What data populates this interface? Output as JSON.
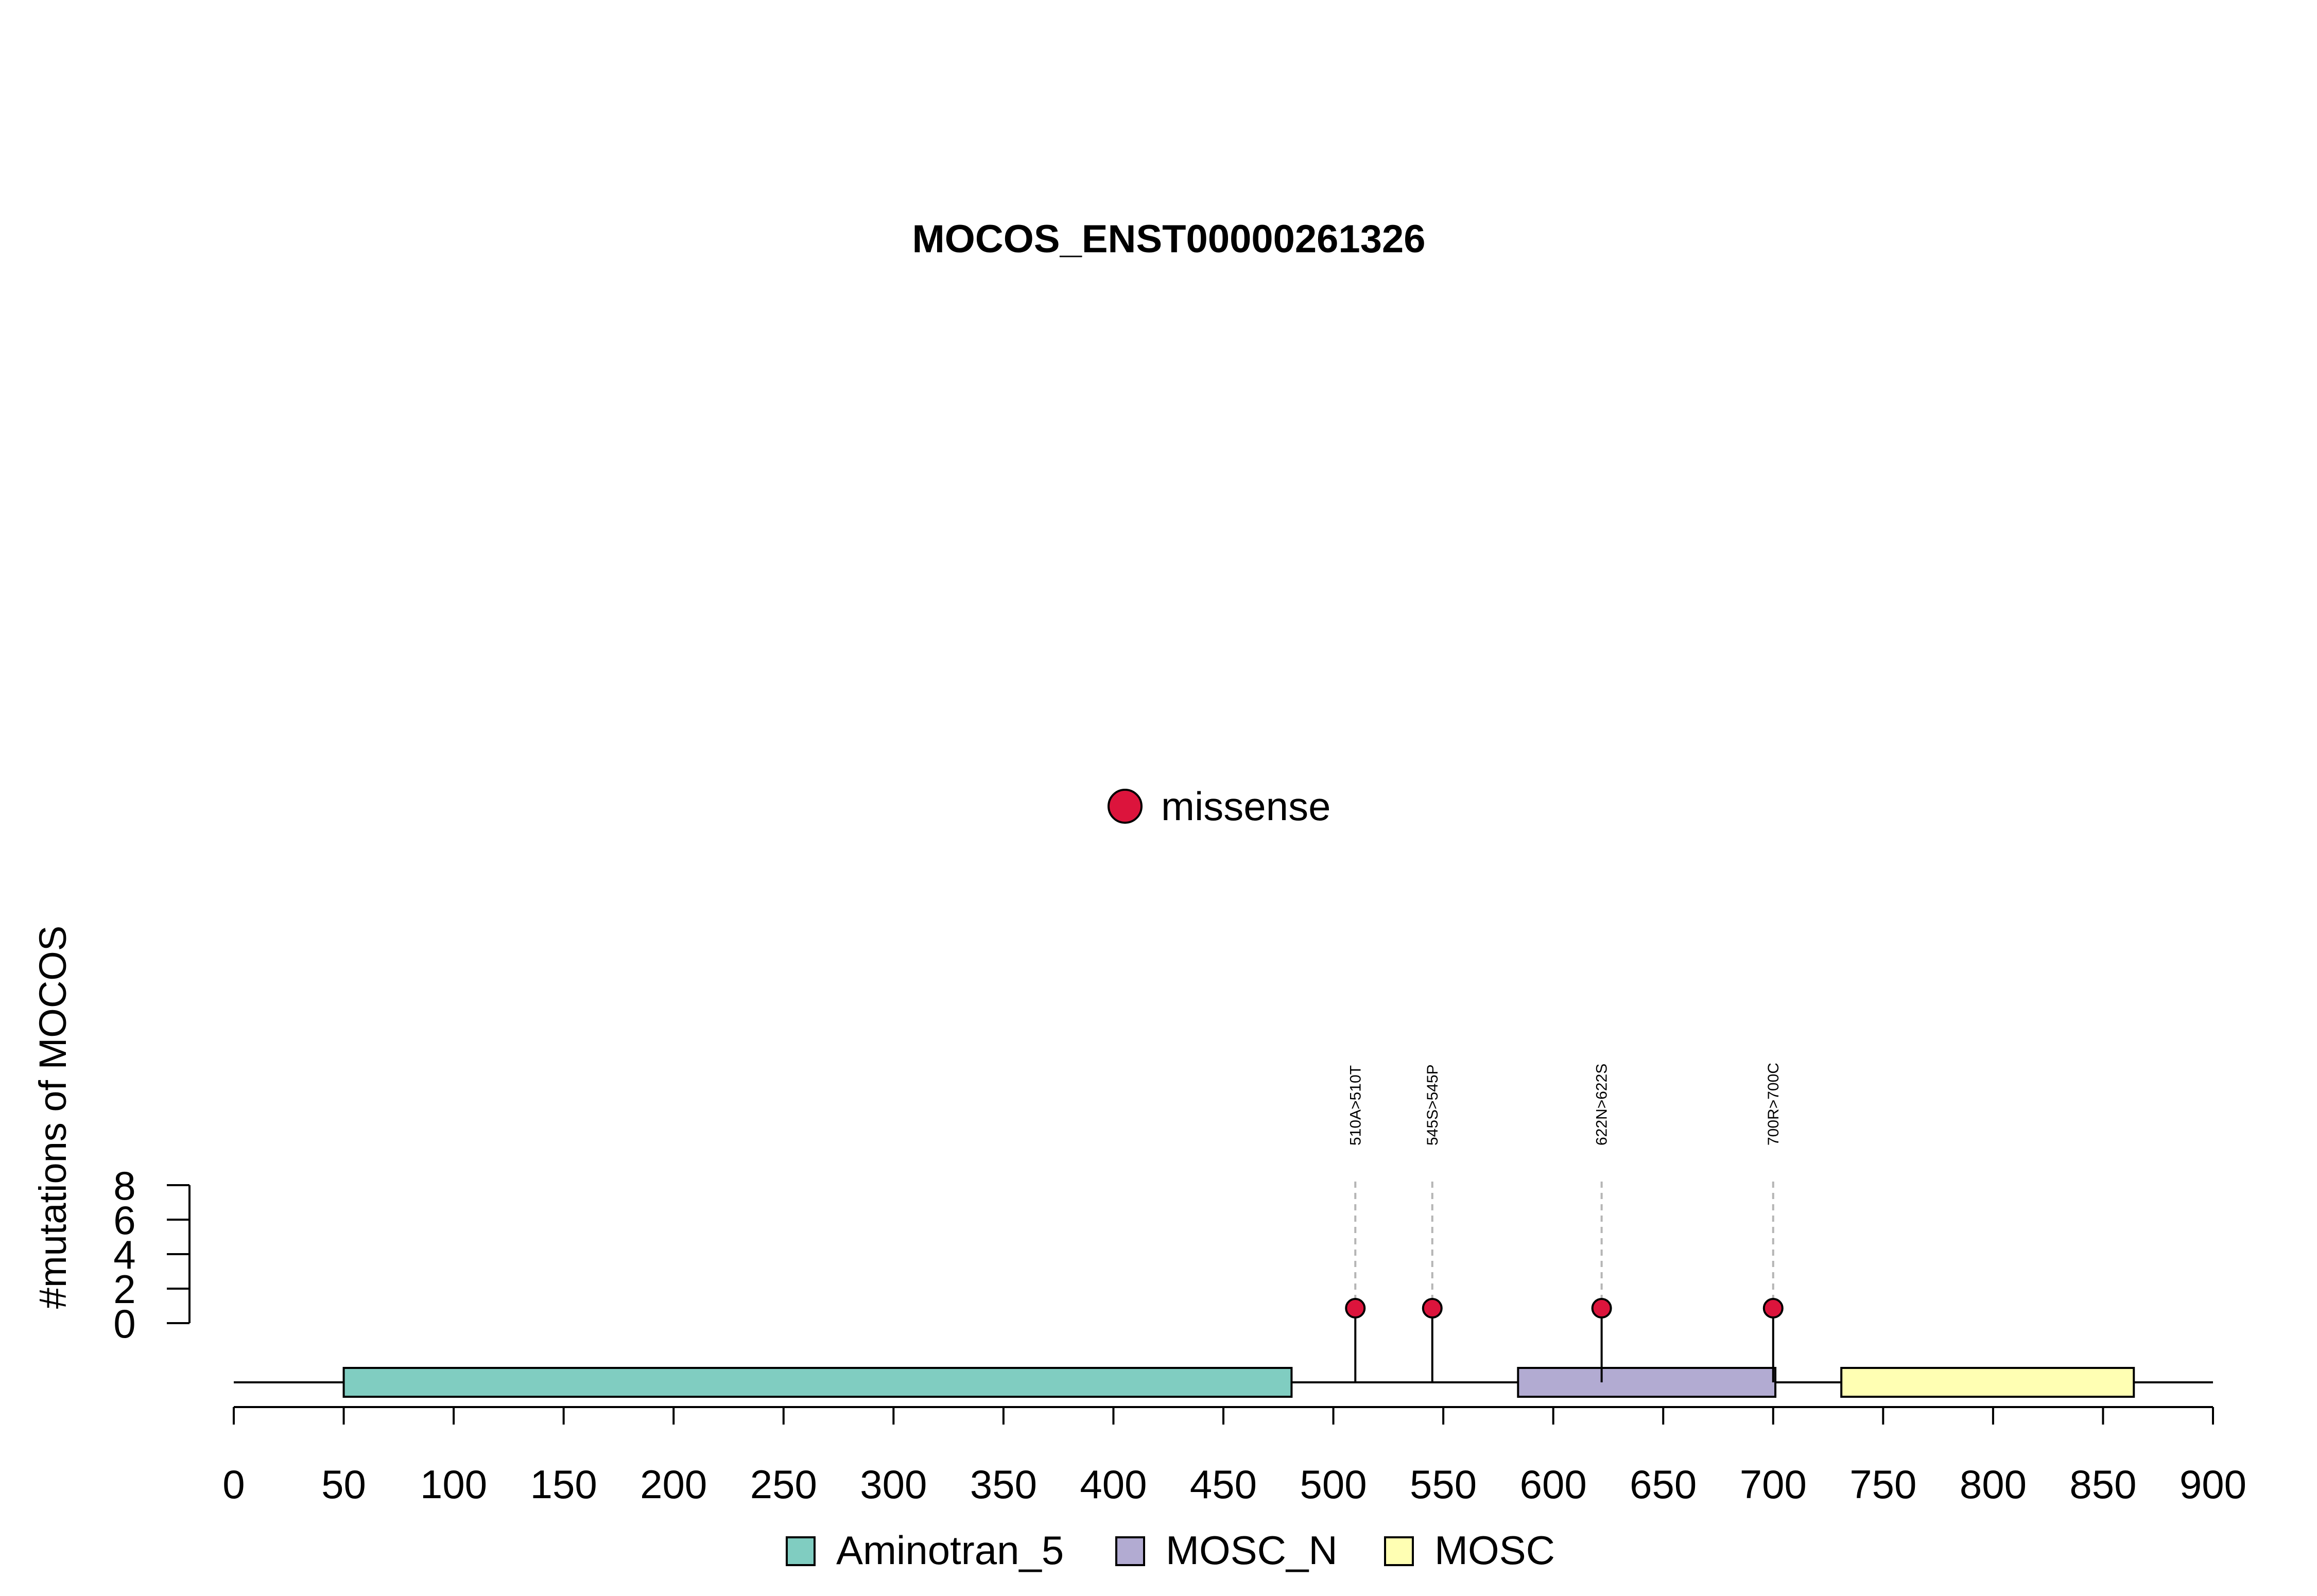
{
  "chart_data": {
    "type": "lollipop",
    "title": "MOCOS_ENST00000261326",
    "ylabel": "#mutations of MOCOS",
    "xlabel": "",
    "xlim": [
      0,
      900
    ],
    "x_ticks": [
      0,
      50,
      100,
      150,
      200,
      250,
      300,
      350,
      400,
      450,
      500,
      550,
      600,
      650,
      700,
      750,
      800,
      850,
      900
    ],
    "ylim": [
      0,
      8
    ],
    "y_ticks": [
      0,
      2,
      4,
      6,
      8
    ],
    "protein_length": 900,
    "mutation_legend": [
      {
        "label": "missense",
        "color": "#DC143C"
      }
    ],
    "domains": [
      {
        "name": "Aminotran_5",
        "start": 50,
        "end": 481,
        "color": "#80CDC1"
      },
      {
        "name": "MOSC_N",
        "start": 584,
        "end": 701,
        "color": "#B2ABD2"
      },
      {
        "name": "MOSC",
        "start": 731,
        "end": 864,
        "color": "#FFFFB3"
      }
    ],
    "mutations": [
      {
        "position": 510,
        "label": "510A>510T",
        "count": 1,
        "type": "missense"
      },
      {
        "position": 545,
        "label": "545S>545P",
        "count": 1,
        "type": "missense"
      },
      {
        "position": 622,
        "label": "622N>622S",
        "count": 1,
        "type": "missense"
      },
      {
        "position": 700,
        "label": "700R>700C",
        "count": 1,
        "type": "missense"
      }
    ],
    "legend_placement": "bottom",
    "grid": false
  }
}
